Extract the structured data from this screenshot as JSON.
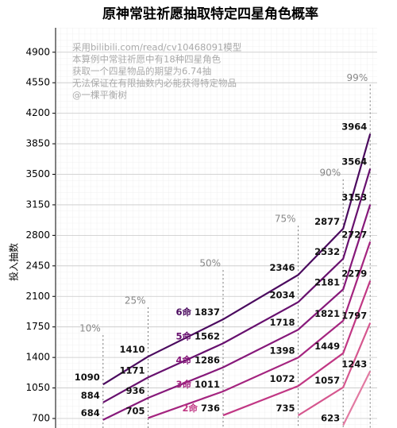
{
  "chart_data": {
    "type": "line",
    "title": "原神常驻祈愿抽取特定四星角色概率",
    "y_label": "投入抽数",
    "annotations": [
      "采用bilibili.com/read/cv10468091模型",
      "本算例中常驻祈愿中有18种四星角色",
      "获取一个四星物品的期望为6.74抽",
      "无法保证在有限抽数内必能获得特定物品",
      "@一棵平衡树"
    ],
    "x": [
      10,
      25,
      50,
      75,
      90,
      99
    ],
    "x_labels": [
      "10%",
      "25%",
      "50%",
      "75%",
      "90%",
      "99%"
    ],
    "xlim": [
      0,
      100
    ],
    "ylim": [
      600,
      5180
    ],
    "yticks": [
      700,
      1050,
      1400,
      1750,
      2100,
      2450,
      2800,
      3150,
      3500,
      3850,
      4200,
      4550,
      4900
    ],
    "grid": true,
    "series": [
      {
        "name": "6命",
        "color": "#4a0a5e",
        "values": [
          1090,
          1410,
          1837,
          2346,
          2877,
          3964
        ]
      },
      {
        "name": "5命",
        "color": "#67106e",
        "values": [
          884,
          1171,
          1562,
          2034,
          2532,
          3564
        ]
      },
      {
        "name": "4命",
        "color": "#86187a",
        "values": [
          684,
          936,
          1286,
          1718,
          2181,
          3153
        ]
      },
      {
        "name": "3命",
        "color": "#a4247f",
        "values": [
          null,
          705,
          1011,
          1398,
          1821,
          2727
        ]
      },
      {
        "name": "2命",
        "color": "#c13784",
        "values": [
          null,
          null,
          736,
          1072,
          1449,
          2279
        ]
      },
      {
        "color": "#d5568e",
        "values": [
          null,
          null,
          null,
          735,
          1057,
          1797
        ]
      },
      {
        "color": "#e27aa2",
        "values": [
          null,
          null,
          null,
          null,
          623,
          1243
        ]
      }
    ]
  }
}
